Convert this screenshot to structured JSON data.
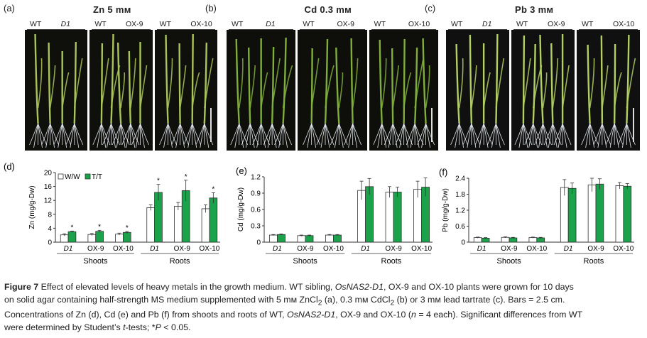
{
  "top_panels": [
    {
      "letter": "(a)",
      "title": "Zn 5 mм",
      "groups": [
        [
          "WT",
          "D1"
        ],
        [
          "WT",
          "OX-9"
        ],
        [
          "WT",
          "OX-10"
        ]
      ],
      "leaf_color": "#a9c45a",
      "bg": "#0f0f0c"
    },
    {
      "letter": "(b)",
      "title": "Cd 0.3 mм",
      "groups": [
        [
          "WT",
          "D1"
        ],
        [
          "WT",
          "OX-9"
        ],
        [
          "WT",
          "OX-10"
        ]
      ],
      "leaf_color": "#7fae3c",
      "bg": "#0e0f0b"
    },
    {
      "letter": "(c)",
      "title": "Pb 3 mм",
      "groups": [
        [
          "WT",
          "D1"
        ],
        [
          "WT",
          "OX-9"
        ],
        [
          "WT",
          "OX-10"
        ]
      ],
      "leaf_color": "#b2cf63",
      "bg": "#101010"
    }
  ],
  "legend": {
    "ww": "W/W",
    "tt": "T/T"
  },
  "colors": {
    "ww": "#ffffff",
    "tt": "#1aa34a",
    "axis": "#333333"
  },
  "chart_data": [
    {
      "type": "bar",
      "letter": "(d)",
      "ylabel": "Zn (mg/g-Dw)",
      "ylim": [
        0,
        20
      ],
      "yticks": [
        "0",
        "4",
        "8",
        "12",
        "16",
        "20"
      ],
      "categories": [
        "D1",
        "OX-9",
        "OX-10",
        "D1",
        "OX-9",
        "OX-10"
      ],
      "groups": [
        "Shoots",
        "Roots"
      ],
      "series": [
        {
          "name": "W/W",
          "values": [
            2.1,
            2.2,
            2.3,
            9.9,
            10.3,
            9.6
          ],
          "errors": [
            0.3,
            0.3,
            0.3,
            0.8,
            1.1,
            1.1
          ]
        },
        {
          "name": "T/T",
          "values": [
            3.0,
            3.1,
            2.8,
            14.3,
            14.8,
            12.7
          ],
          "errors": [
            0.2,
            0.3,
            0.3,
            2.3,
            3.0,
            1.5
          ]
        }
      ],
      "significant": [
        true,
        true,
        true,
        true,
        true,
        true
      ]
    },
    {
      "type": "bar",
      "letter": "(e)",
      "ylabel": "Cd (mg/g-Dw)",
      "ylim": [
        0,
        1.2
      ],
      "yticks": [
        "0",
        "0.3",
        "0.6",
        "0.9",
        "1.2"
      ],
      "categories": [
        "D1",
        "OX-9",
        "OX-10",
        "D1",
        "OX-9",
        "OX-10"
      ],
      "groups": [
        "Shoots",
        "Roots"
      ],
      "series": [
        {
          "name": "W/W",
          "values": [
            0.13,
            0.12,
            0.13,
            0.95,
            0.92,
            0.97
          ],
          "errors": [
            0.01,
            0.01,
            0.01,
            0.17,
            0.1,
            0.15
          ]
        },
        {
          "name": "T/T",
          "values": [
            0.14,
            0.12,
            0.13,
            1.02,
            0.92,
            1.01
          ],
          "errors": [
            0.01,
            0.01,
            0.01,
            0.15,
            0.09,
            0.17
          ]
        }
      ],
      "significant": [
        false,
        false,
        false,
        false,
        false,
        false
      ]
    },
    {
      "type": "bar",
      "letter": "(f)",
      "ylabel": "Pb (mg/g-Dw)",
      "ylim": [
        0,
        2.4
      ],
      "yticks": [
        "0",
        "0.6",
        "1.2",
        "1.8",
        "2.4"
      ],
      "categories": [
        "D1",
        "OX-9",
        "OX-10",
        "D1",
        "OX-9",
        "OX-10"
      ],
      "groups": [
        "Shoots",
        "Roots"
      ],
      "series": [
        {
          "name": "W/W",
          "values": [
            0.17,
            0.18,
            0.17,
            2.05,
            2.15,
            2.12
          ],
          "errors": [
            0.02,
            0.02,
            0.02,
            0.3,
            0.25,
            0.12
          ]
        },
        {
          "name": "T/T",
          "values": [
            0.15,
            0.16,
            0.16,
            2.02,
            2.18,
            2.1
          ],
          "errors": [
            0.02,
            0.02,
            0.02,
            0.2,
            0.2,
            0.1
          ]
        }
      ],
      "significant": [
        false,
        false,
        false,
        false,
        false,
        false
      ]
    }
  ],
  "caption": {
    "figure_label": "Figure 7",
    "line1_a": "Effect of elevated levels of heavy metals in the growth medium. WT sibling, ",
    "line1_it": "OsNAS2-D1",
    "line1_b": ", OX-9 and OX-10 plants were grown for 10 days",
    "line2_a": "on solid agar containing half-strength MS medium supplemented with 5 mм ZnCl",
    "line2_sub1": "2",
    "line2_b": " (a), 0.3 mм CdCl",
    "line2_sub2": "2",
    "line2_c": " (b) or 3 mм lead tartrate (c). Bars = 2.5 cm.",
    "line3_a": "Concentrations of Zn (d), Cd (e) and Pb (f) from shoots and roots of WT, ",
    "line3_it": "OsNAS2-D1",
    "line3_b": ", OX-9 and OX-10 (",
    "line3_n": "n",
    "line3_c": " = 4 each). Significant differences from WT",
    "line4_a": "were determined by Student’s ",
    "line4_it": "t",
    "line4_b": "-tests; *",
    "line4_p": "P",
    "line4_c": " < 0.05."
  }
}
